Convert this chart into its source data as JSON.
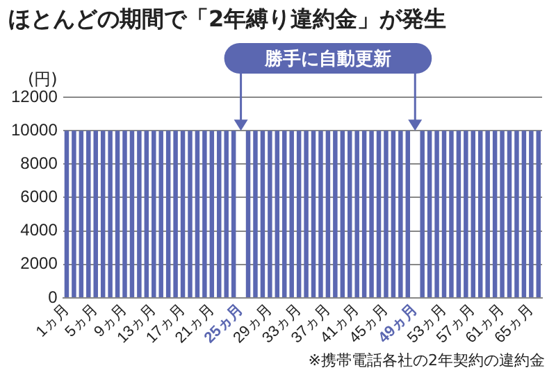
{
  "chart_data": {
    "type": "bar",
    "title": "ほとんどの期間で「2年縛り違約金」が発生",
    "ylabel": "(円)",
    "categories": [
      "1ヵ月",
      null,
      null,
      null,
      "5ヵ月",
      null,
      null,
      null,
      "9ヵ月",
      null,
      null,
      null,
      "13ヵ月",
      null,
      null,
      null,
      "17ヵ月",
      null,
      null,
      null,
      "21ヵ月",
      null,
      null,
      null,
      "25ヵ月",
      null,
      null,
      null,
      "29ヵ月",
      null,
      null,
      null,
      "33ヵ月",
      null,
      null,
      null,
      "37ヵ月",
      null,
      null,
      null,
      "41ヵ月",
      null,
      null,
      null,
      "45ヵ月",
      null,
      null,
      null,
      "49ヵ月",
      null,
      null,
      null,
      "53ヵ月",
      null,
      null,
      null,
      "57ヵ月",
      null,
      null,
      null,
      "61ヵ月",
      null,
      null,
      null,
      "65ヵ月",
      null
    ],
    "values": [
      10000,
      10000,
      10000,
      10000,
      10000,
      10000,
      10000,
      10000,
      10000,
      10000,
      10000,
      10000,
      10000,
      10000,
      10000,
      10000,
      10000,
      10000,
      10000,
      10000,
      10000,
      10000,
      10000,
      10000,
      0,
      10000,
      10000,
      10000,
      10000,
      10000,
      10000,
      10000,
      10000,
      10000,
      10000,
      10000,
      10000,
      10000,
      10000,
      10000,
      10000,
      10000,
      10000,
      10000,
      10000,
      10000,
      10000,
      10000,
      0,
      10000,
      10000,
      10000,
      10000,
      10000,
      10000,
      10000,
      10000,
      10000,
      10000,
      10000,
      10000,
      10000,
      10000,
      10000,
      10000,
      10000
    ],
    "color": "#5b67b1",
    "ylim": [
      0,
      12000
    ],
    "yticks": [
      0,
      2000,
      4000,
      6000,
      8000,
      10000,
      12000
    ],
    "grid": "y",
    "legend": false,
    "annotations": [
      "勝手に自動更新",
      "※携帯電話各社の2年契約の違約金"
    ]
  }
}
